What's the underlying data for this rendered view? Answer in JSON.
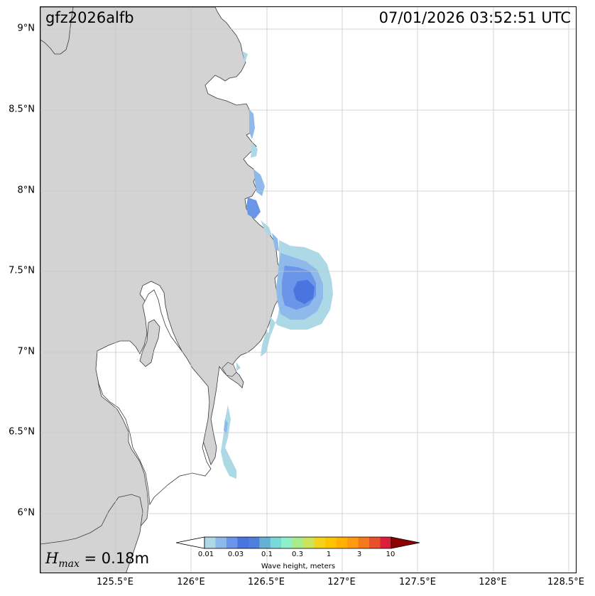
{
  "header": {
    "event_id": "gfz2026alfb",
    "timestamp": "07/01/2026 03:52:51 UTC"
  },
  "summary": {
    "hmax_symbol": "H",
    "hmax_subscript": "max",
    "hmax_value": " = 0.18m"
  },
  "axes": {
    "lat_labels": [
      "9°N",
      "8.5°N",
      "8°N",
      "7.5°N",
      "7°N",
      "6.5°N",
      "6°N"
    ],
    "lon_labels": [
      "125.5°E",
      "126°E",
      "126.5°E",
      "127°E",
      "127.5°E",
      "128°E",
      "128.5°E"
    ],
    "grid": true
  },
  "colorbar": {
    "label": "Wave height, meters",
    "tick_labels": [
      "0.01",
      "0.03",
      "0.1",
      "0.3",
      "1",
      "3",
      "10"
    ],
    "colors": [
      "#add8e6",
      "#8fb8eb",
      "#6a95e8",
      "#4a74e0",
      "#4f7fdc",
      "#66b0d6",
      "#78d9d9",
      "#8ff0c8",
      "#a8ec8a",
      "#cde35a",
      "#f5d21a",
      "#ffc400",
      "#ffb000",
      "#ff9a10",
      "#f5781c",
      "#e8502a",
      "#dc1e3c",
      "#8b0000"
    ]
  },
  "colors": {
    "land": "#d3d3d3",
    "coast": "#3a3a3a",
    "grid": "#c8c8c8",
    "wave_low": "#add8e6",
    "wave_mid": "#8fb8eb",
    "wave_high": "#6a95e8",
    "wave_peak": "#4a74e0"
  }
}
